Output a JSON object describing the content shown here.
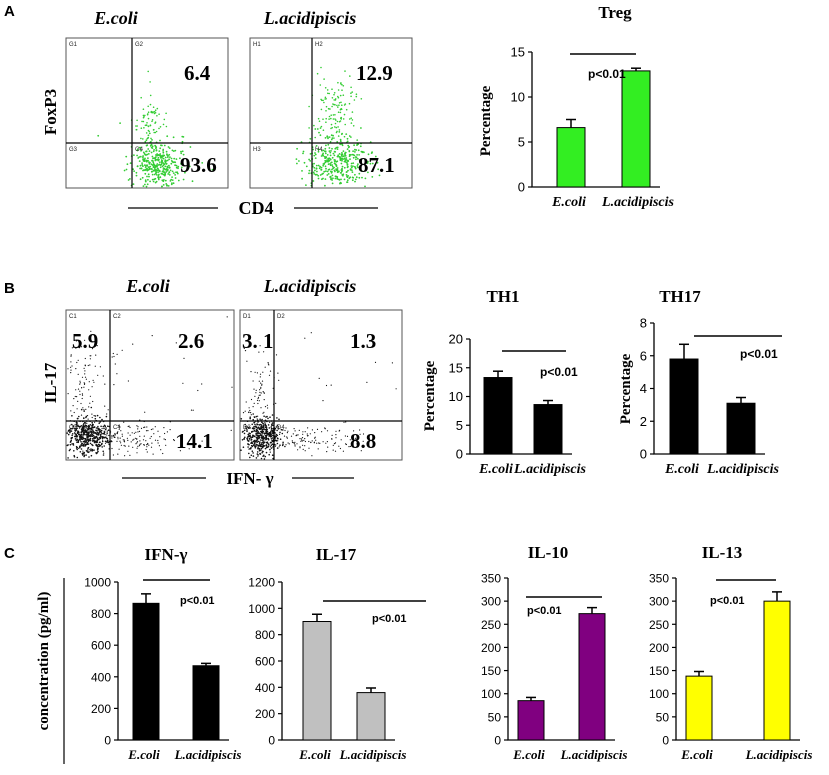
{
  "panels": {
    "a": "A",
    "b": "B",
    "c": "C"
  },
  "panel_a": {
    "flow": {
      "sample1": "E.coli",
      "sample2": "L.acidipiscis",
      "ylabel": "FoxP3",
      "xlabel": "CD4",
      "plot1": {
        "q_labels": [
          "G1",
          "G2",
          "G3",
          "G4"
        ],
        "upper": "6.4",
        "lower": "93.6"
      },
      "plot2": {
        "q_labels": [
          "H1",
          "H2",
          "H3",
          "H4"
        ],
        "upper": "12.9",
        "lower": "87.1"
      },
      "dot_color": "#33cc33"
    }
  },
  "panel_b": {
    "flow": {
      "sample1": "E.coli",
      "sample2": "L.acidipiscis",
      "ylabel": "IL-17",
      "xlabel": "IFN- γ",
      "plot1": {
        "q_labels": [
          "C1",
          "C2",
          "C3",
          "C4"
        ],
        "ul": "5.9",
        "ur": "2.6",
        "lr": "14.1"
      },
      "plot2": {
        "q_labels": [
          "D1",
          "D2",
          "D3",
          "D4"
        ],
        "ul": "3. 1",
        "ur": "1.3",
        "lr": "8.8"
      },
      "dot_color": "#111111"
    }
  },
  "chart_data": [
    {
      "id": "treg",
      "type": "bar",
      "title": "Treg",
      "ylabel": "Percentage",
      "xlabel": "",
      "categories": [
        "E.coli",
        "L.acidipiscis"
      ],
      "values": [
        6.6,
        12.9
      ],
      "errors": [
        0.9,
        0.3
      ],
      "ylim": [
        0,
        15
      ],
      "yticks": [
        "0",
        "5",
        "10",
        "15"
      ],
      "ytick_values": [
        0,
        5,
        10,
        15
      ],
      "color": "#33ee22",
      "annotation": "p<0.01"
    },
    {
      "id": "th1",
      "type": "bar",
      "title": "TH1",
      "ylabel": "Percentage",
      "xlabel": "",
      "categories": [
        "E.coli",
        "L.acidipiscis"
      ],
      "values": [
        13.3,
        8.6
      ],
      "errors": [
        1.1,
        0.7
      ],
      "ylim": [
        0,
        20
      ],
      "yticks": [
        "0",
        "5",
        "10",
        "15",
        "20"
      ],
      "ytick_values": [
        0,
        5,
        10,
        15,
        20
      ],
      "color": "#000000",
      "annotation": "p<0.01"
    },
    {
      "id": "th17",
      "type": "bar",
      "title": "TH17",
      "ylabel": "Percentage",
      "xlabel": "",
      "categories": [
        "E.coli",
        "L.acidipiscis"
      ],
      "values": [
        5.8,
        3.1
      ],
      "errors": [
        0.9,
        0.35
      ],
      "ylim": [
        0,
        8
      ],
      "yticks": [
        "0",
        "2",
        "4",
        "6",
        "8"
      ],
      "ytick_values": [
        0,
        2,
        4,
        6,
        8
      ],
      "color": "#000000",
      "annotation": "p<0.01"
    },
    {
      "id": "ifng",
      "type": "bar",
      "title": "IFN-γ",
      "ylabel": "concentration (pg/ml)",
      "xlabel": "",
      "categories": [
        "E.coli",
        "L.acidipiscis"
      ],
      "values": [
        865,
        470
      ],
      "errors": [
        60,
        15
      ],
      "ylim": [
        0,
        1000
      ],
      "yticks": [
        "0",
        "200",
        "400",
        "600",
        "800",
        "1000"
      ],
      "ytick_values": [
        0,
        200,
        400,
        600,
        800,
        1000
      ],
      "color": "#000000",
      "annotation": "p<0.01"
    },
    {
      "id": "il17",
      "type": "bar",
      "title": "IL-17",
      "ylabel": "",
      "xlabel": "",
      "categories": [
        "E.coli",
        "L.acidipiscis"
      ],
      "values": [
        900,
        360
      ],
      "errors": [
        55,
        35
      ],
      "ylim": [
        0,
        1200
      ],
      "yticks": [
        "0",
        "200",
        "400",
        "600",
        "800",
        "1000",
        "1200"
      ],
      "ytick_values": [
        0,
        200,
        400,
        600,
        800,
        1000,
        1200
      ],
      "color": "#c0c0c0",
      "annotation": "p<0.01"
    },
    {
      "id": "il10",
      "type": "bar",
      "title": "IL-10",
      "ylabel": "",
      "xlabel": "",
      "categories": [
        "E.coli",
        "L.acidipiscis"
      ],
      "values": [
        85,
        273
      ],
      "errors": [
        7,
        13
      ],
      "ylim": [
        0,
        350
      ],
      "yticks": [
        "0",
        "50",
        "100",
        "150",
        "200",
        "250",
        "300",
        "350"
      ],
      "ytick_values": [
        0,
        50,
        100,
        150,
        200,
        250,
        300,
        350
      ],
      "color": "#800080",
      "annotation": "p<0.01"
    },
    {
      "id": "il13",
      "type": "bar",
      "title": "IL-13",
      "ylabel": "",
      "xlabel": "",
      "categories": [
        "E.coli",
        "L.acidipiscis"
      ],
      "values": [
        138,
        300
      ],
      "errors": [
        10,
        20
      ],
      "ylim": [
        0,
        350
      ],
      "yticks": [
        "0",
        "50",
        "100",
        "150",
        "200",
        "250",
        "300",
        "350"
      ],
      "ytick_values": [
        0,
        50,
        100,
        150,
        200,
        250,
        300,
        350
      ],
      "color": "#ffff00",
      "annotation": "p<0.01"
    }
  ]
}
